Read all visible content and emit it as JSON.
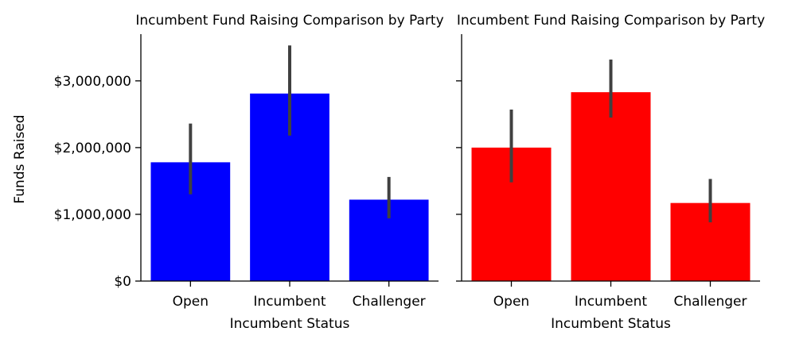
{
  "chart_data": [
    {
      "type": "bar",
      "title": "Incumbent Fund Raising Comparison by Party",
      "xlabel": "Incumbent Status",
      "ylabel": "Funds Raised",
      "categories": [
        "Open",
        "Incumbent",
        "Challenger"
      ],
      "values": [
        1780000,
        2810000,
        1220000
      ],
      "error_low": [
        1300000,
        2180000,
        940000
      ],
      "error_high": [
        2360000,
        3530000,
        1560000
      ],
      "bar_color": "#0000ff",
      "error_color": "#404040",
      "ylim": [
        0,
        3700000
      ],
      "yticks": [
        0,
        1000000,
        2000000,
        3000000
      ],
      "ytick_labels": [
        "$0",
        "$1,000,000",
        "$2,000,000",
        "$3,000,000"
      ],
      "grid": false
    },
    {
      "type": "bar",
      "title": "Incumbent Fund Raising Comparison by Party",
      "xlabel": "Incumbent Status",
      "ylabel": "",
      "categories": [
        "Open",
        "Incumbent",
        "Challenger"
      ],
      "values": [
        2000000,
        2830000,
        1170000
      ],
      "error_low": [
        1480000,
        2450000,
        880000
      ],
      "error_high": [
        2570000,
        3320000,
        1530000
      ],
      "bar_color": "#ff0000",
      "error_color": "#404040",
      "ylim": [
        0,
        3700000
      ],
      "yticks": [
        0,
        1000000,
        2000000,
        3000000
      ],
      "ytick_labels": [],
      "grid": false
    }
  ]
}
